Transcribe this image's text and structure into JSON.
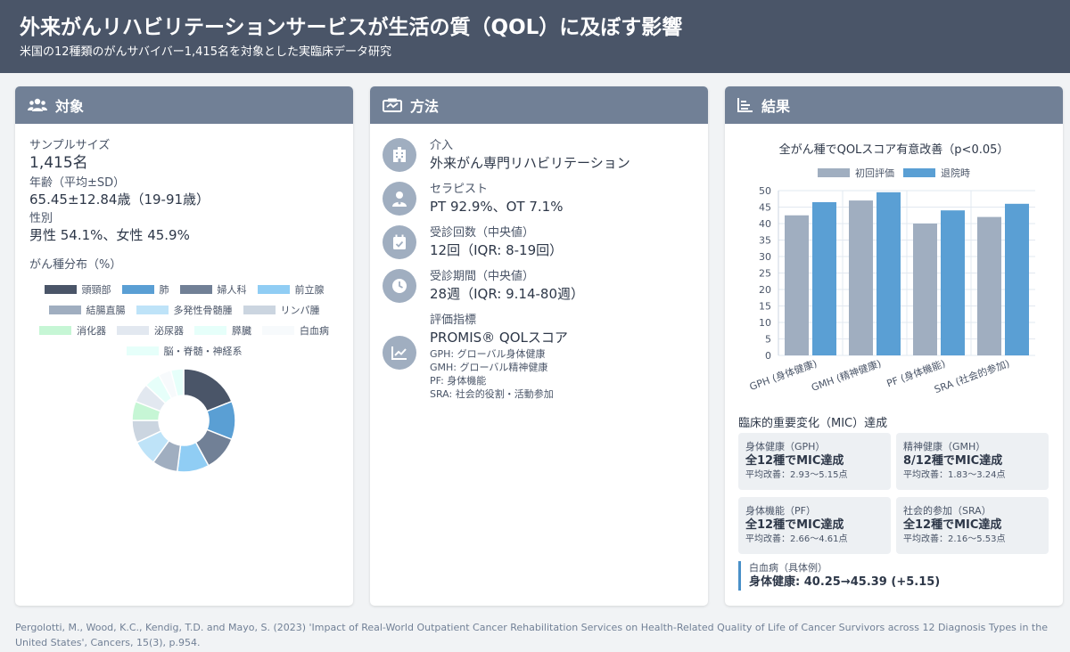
{
  "header": {
    "title": "外来がんリハビリテーションサービスが生活の質（QOL）に及ぼす影響",
    "subtitle": "米国の12種類のがんサバイバー1,415名を対象とした実臨床データ研究"
  },
  "target": {
    "title": "対象",
    "sample_label": "サンプルサイズ",
    "sample_value": "1,415名",
    "age_label": "年齢（平均±SD）",
    "age_value": "65.45±12.84歳（19-91歳）",
    "sex_label": "性別",
    "sex_value": "男性 54.1%、女性 45.9%",
    "dist_label": "がん種分布（%）",
    "legend": [
      {
        "label": "頭頸部",
        "color": "#4a5568"
      },
      {
        "label": "肺",
        "color": "#5a9fd4"
      },
      {
        "label": "婦人科",
        "color": "#718096"
      },
      {
        "label": "前立腺",
        "color": "#90cdf4"
      },
      {
        "label": "結腸直腸",
        "color": "#a0aec0"
      },
      {
        "label": "多発性骨髄腫",
        "color": "#bee3f8"
      },
      {
        "label": "リンパ腫",
        "color": "#cbd5e0"
      },
      {
        "label": "消化器",
        "color": "#c6f6d5"
      },
      {
        "label": "泌尿器",
        "color": "#e2e8f0"
      },
      {
        "label": "膵臓",
        "color": "#e6fffa"
      },
      {
        "label": "白血病",
        "color": "#f7fafc"
      },
      {
        "label": "脳・脊髄・神経系",
        "color": "#e6fffa"
      }
    ]
  },
  "chart_data": [
    {
      "type": "pie",
      "title": "",
      "categories": [
        "頭頸部",
        "肺",
        "婦人科",
        "前立腺",
        "結腸直腸",
        "多発性骨髄腫",
        "リンパ腫",
        "消化器",
        "泌尿器",
        "膵臓",
        "白血病",
        "脳・脊髄・神経系"
      ],
      "values": [
        19,
        12,
        11,
        10,
        8,
        8,
        7,
        6,
        6,
        5,
        4,
        4
      ],
      "colors": [
        "#4a5568",
        "#5a9fd4",
        "#718096",
        "#90cdf4",
        "#a0aec0",
        "#bee3f8",
        "#cbd5e0",
        "#c6f6d5",
        "#e2e8f0",
        "#e6fffa",
        "#f7fafc",
        "#e6fffa"
      ]
    },
    {
      "type": "bar",
      "title": "全がん種でQOLスコア有意改善（p<0.05）",
      "categories": [
        "GPH (身体健康)",
        "GMH (精神健康)",
        "PF (身体機能)",
        "SRA (社会的参加)"
      ],
      "series": [
        {
          "name": "初回評価",
          "values": [
            42.5,
            47,
            40,
            42
          ],
          "color": "#a0aec0"
        },
        {
          "name": "退院時",
          "values": [
            46.5,
            49.5,
            44,
            46
          ],
          "color": "#5a9fd4"
        }
      ],
      "ylim": [
        0,
        50
      ],
      "yticks": [
        0,
        5,
        10,
        15,
        20,
        25,
        30,
        35,
        40,
        45,
        50
      ],
      "legend": "top",
      "grid": true
    }
  ],
  "method": {
    "title": "方法",
    "items": [
      {
        "label": "介入",
        "value": "外来がん専門リハビリテーション",
        "icon": "hospital-icon"
      },
      {
        "label": "セラピスト",
        "value": "PT 92.9%、OT 7.1%",
        "icon": "therapist-icon"
      },
      {
        "label": "受診回数（中央値）",
        "value": "12回（IQR: 8-19回）",
        "icon": "calendar-icon"
      },
      {
        "label": "受診期間（中央値）",
        "value": "28週（IQR: 9.14-80週）",
        "icon": "clock-icon"
      }
    ],
    "measure": {
      "label": "評価指標",
      "value": "PROMIS® QOLスコア",
      "notes": [
        "GPH: グローバル身体健康",
        "GMH: グローバル精神健康",
        "PF: 身体機能",
        "SRA: 社会的役割・活動参加"
      ],
      "icon": "chart-line-icon"
    }
  },
  "results": {
    "title": "結果",
    "mic_title": "臨床的重要変化（MIC）達成",
    "mic": [
      {
        "h": "身体健康（GPH）",
        "v": "全12種でMIC達成",
        "s": "平均改善：2.93〜5.15点"
      },
      {
        "h": "精神健康（GMH）",
        "v": "8/12種でMIC達成",
        "s": "平均改善：1.83〜3.24点"
      },
      {
        "h": "身体機能（PF）",
        "v": "全12種でMIC達成",
        "s": "平均改善：2.66〜4.61点"
      },
      {
        "h": "社会的参加（SRA）",
        "v": "全12種でMIC達成",
        "s": "平均改善：2.16〜5.53点"
      }
    ],
    "example_label": "白血病（具体例）",
    "example_value": "身体健康: 40.25→45.39 (+5.15)"
  },
  "footer": "Pergolotti, M., Wood, K.C., Kendig, T.D. and Mayo, S. (2023) 'Impact of Real-World Outpatient Cancer Rehabilitation Services on Health-Related Quality of Life of Cancer Survivors across 12 Diagnosis Types in the United States', Cancers, 15(3), p.954."
}
